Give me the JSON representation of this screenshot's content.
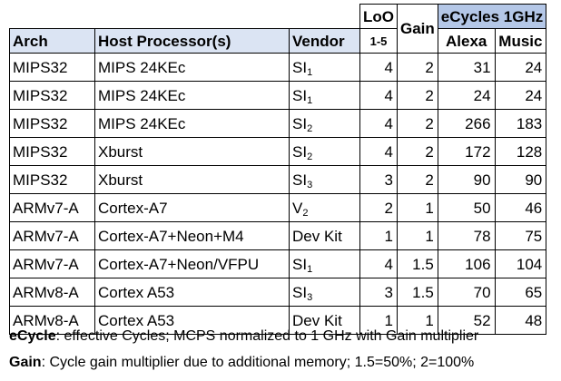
{
  "header": {
    "loo": "LoO",
    "loo_range": "1-5",
    "gain": "Gain",
    "ecycles": "eCycles 1GHz",
    "arch": "Arch",
    "host": "Host Processor(s)",
    "vendor": "Vendor",
    "alexa": "Alexa",
    "music": "Music"
  },
  "rows": [
    {
      "arch": "MIPS32",
      "host": "MIPS 24KEc",
      "vendor": "SI",
      "vendor_sub": "1",
      "loo": "4",
      "gain": "2",
      "alexa": "31",
      "music": "24"
    },
    {
      "arch": "MIPS32",
      "host": "MIPS 24KEc",
      "vendor": "SI",
      "vendor_sub": "1",
      "loo": "4",
      "gain": "2",
      "alexa": "24",
      "music": "24"
    },
    {
      "arch": "MIPS32",
      "host": "MIPS 24KEc",
      "vendor": "SI",
      "vendor_sub": "2",
      "loo": "4",
      "gain": "2",
      "alexa": "266",
      "music": "183"
    },
    {
      "arch": "MIPS32",
      "host": "Xburst",
      "vendor": "SI",
      "vendor_sub": "2",
      "loo": "4",
      "gain": "2",
      "alexa": "172",
      "music": "128"
    },
    {
      "arch": "MIPS32",
      "host": "Xburst",
      "vendor": "SI",
      "vendor_sub": "3",
      "loo": "3",
      "gain": "2",
      "alexa": "90",
      "music": "90"
    },
    {
      "arch": "ARMv7-A",
      "host": "Cortex-A7",
      "vendor": "V",
      "vendor_sub": "2",
      "loo": "2",
      "gain": "1",
      "alexa": "50",
      "music": "46"
    },
    {
      "arch": "ARMv7-A",
      "host": "Cortex-A7+Neon+M4",
      "vendor": "Dev Kit",
      "vendor_sub": "",
      "loo": "1",
      "gain": "1",
      "alexa": "78",
      "music": "75"
    },
    {
      "arch": "ARMv7-A",
      "host": "Cortex-A7+Neon/VFPU",
      "vendor": "SI",
      "vendor_sub": "1",
      "loo": "4",
      "gain": "1.5",
      "alexa": "106",
      "music": "104"
    },
    {
      "arch": "ARMv8-A",
      "host": "Cortex A53",
      "vendor": "SI",
      "vendor_sub": "3",
      "loo": "3",
      "gain": "1.5",
      "alexa": "70",
      "music": "65"
    },
    {
      "arch": "ARMv8-A",
      "host": "Cortex A53",
      "vendor": "Dev Kit",
      "vendor_sub": "",
      "loo": "1",
      "gain": "1",
      "alexa": "52",
      "music": "48"
    }
  ],
  "footnotes": {
    "ecycle_term": "eCycle",
    "ecycle_def": ": effective Cycles; MCPS normalized to 1 GHz with Gain multiplier",
    "gain_term": "Gain",
    "gain_def": ": Cycle gain multiplier due to additional memory; 1.5=50%; 2=100%"
  }
}
